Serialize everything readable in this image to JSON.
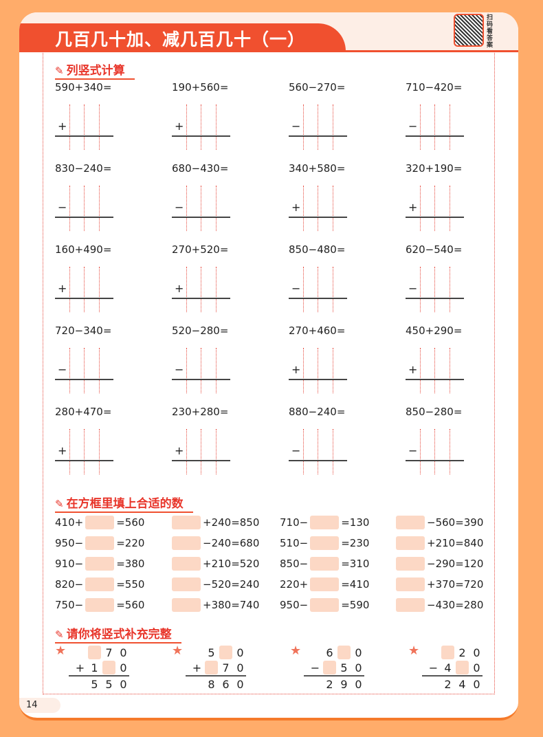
{
  "header": {
    "title": "几百几十加、减几百几十（一）",
    "qr_label": "扫码看答案"
  },
  "page_number": "14",
  "colors": {
    "accent": "#F0502F",
    "box": "#FCD8C5",
    "background": "#FFAC6A"
  },
  "section1": {
    "title": "列竖式计算",
    "icon": "pencil-icon",
    "problems": [
      [
        "590+340=",
        "+"
      ],
      [
        "190+560=",
        "+"
      ],
      [
        "560−270=",
        "−"
      ],
      [
        "710−420=",
        "−"
      ],
      [
        "830−240=",
        "−"
      ],
      [
        "680−430=",
        "−"
      ],
      [
        "340+580=",
        "+"
      ],
      [
        "320+190=",
        "+"
      ],
      [
        "160+490=",
        "+"
      ],
      [
        "270+520=",
        "+"
      ],
      [
        "850−480=",
        "−"
      ],
      [
        "620−540=",
        "−"
      ],
      [
        "720−340=",
        "−"
      ],
      [
        "520−280=",
        "−"
      ],
      [
        "270+460=",
        "+"
      ],
      [
        "450+290=",
        "+"
      ],
      [
        "280+470=",
        "+"
      ],
      [
        "230+280=",
        "+"
      ],
      [
        "880−240=",
        "−"
      ],
      [
        "850−280=",
        "−"
      ]
    ]
  },
  "section2": {
    "title": "在方框里填上合适的数",
    "icon": "pencil-icon",
    "items": [
      [
        "410+",
        "=560"
      ],
      [
        "",
        "+240=850"
      ],
      [
        "710−",
        "=130"
      ],
      [
        "",
        "−560=390"
      ],
      [
        "950−",
        "=220"
      ],
      [
        "",
        "−240=680"
      ],
      [
        "510−",
        "=230"
      ],
      [
        "",
        "+210=840"
      ],
      [
        "910−",
        "=380"
      ],
      [
        "",
        "+210=520"
      ],
      [
        "850−",
        "=310"
      ],
      [
        "",
        "−290=120"
      ],
      [
        "820−",
        "=550"
      ],
      [
        "",
        "−520=240"
      ],
      [
        "220+",
        "=410"
      ],
      [
        "",
        "+370=720"
      ],
      [
        "750−",
        "=560"
      ],
      [
        "",
        "+380=740"
      ],
      [
        "950−",
        "=590"
      ],
      [
        "",
        "−430=280"
      ]
    ]
  },
  "section3": {
    "title": "请你将竖式补充完整",
    "icon": "pencil-icon",
    "problems": [
      {
        "top": [
          "",
          "7",
          "0"
        ],
        "op": "+",
        "bottom": [
          "1",
          "",
          "0"
        ],
        "result": [
          "5",
          "5",
          "0"
        ]
      },
      {
        "top": [
          "5",
          "",
          "0"
        ],
        "op": "+",
        "bottom": [
          "",
          "7",
          "0"
        ],
        "result": [
          "8",
          "6",
          "0"
        ]
      },
      {
        "top": [
          "6",
          "",
          "0"
        ],
        "op": "−",
        "bottom": [
          "",
          "5",
          "0"
        ],
        "result": [
          "2",
          "9",
          "0"
        ]
      },
      {
        "top": [
          "",
          "2",
          "0"
        ],
        "op": "−",
        "bottom": [
          "4",
          "",
          "0"
        ],
        "result": [
          "2",
          "4",
          "0"
        ]
      }
    ]
  }
}
